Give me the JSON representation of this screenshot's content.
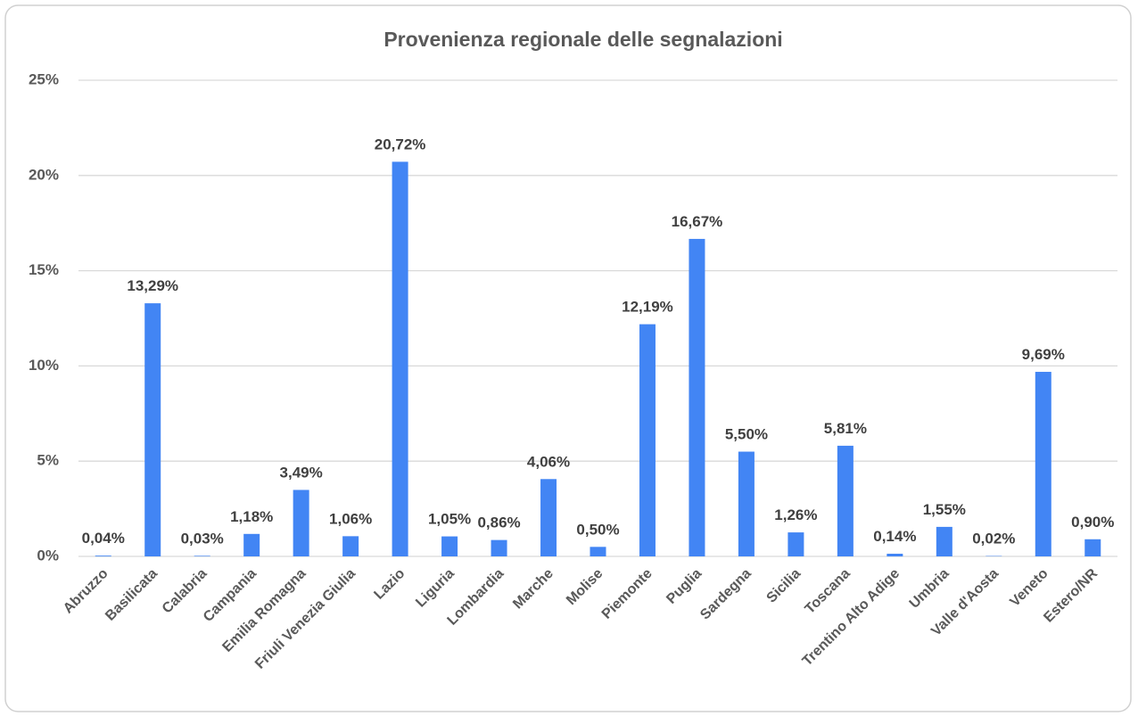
{
  "chart_data": {
    "type": "bar",
    "title": "Provenienza regionale delle segnalazioni",
    "categories": [
      "Abruzzo",
      "Basilicata",
      "Calabria",
      "Campania",
      "Emilia Romagna",
      "Friuli Venezia Giulia",
      "Lazio",
      "Liguria",
      "Lombardia",
      "Marche",
      "Molise",
      "Piemonte",
      "Puglia",
      "Sardegna",
      "Sicilia",
      "Toscana",
      "Trentino Alto Adige",
      "Umbria",
      "Valle d'Aosta",
      "Veneto",
      "Estero/NR"
    ],
    "values": [
      0.04,
      13.29,
      0.03,
      1.18,
      3.49,
      1.06,
      20.72,
      1.05,
      0.86,
      4.06,
      0.5,
      12.19,
      16.67,
      5.5,
      1.26,
      5.81,
      0.14,
      1.55,
      0.02,
      9.69,
      0.9
    ],
    "value_labels": [
      "0,04%",
      "13,29%",
      "0,03%",
      "1,18%",
      "3,49%",
      "1,06%",
      "20,72%",
      "1,05%",
      "0,86%",
      "4,06%",
      "0,50%",
      "12,19%",
      "16,67%",
      "5,50%",
      "1,26%",
      "5,81%",
      "0,14%",
      "1,55%",
      "0,02%",
      "9,69%",
      "0,90%"
    ],
    "color": "#4285f4",
    "ylim": [
      0,
      25
    ],
    "yticks": [
      {
        "value": 0,
        "label": "0%"
      },
      {
        "value": 5,
        "label": "5%"
      },
      {
        "value": 10,
        "label": "10%"
      },
      {
        "value": 15,
        "label": "15%"
      },
      {
        "value": 20,
        "label": "20%"
      },
      {
        "value": 25,
        "label": "25%"
      }
    ],
    "grid": true
  }
}
